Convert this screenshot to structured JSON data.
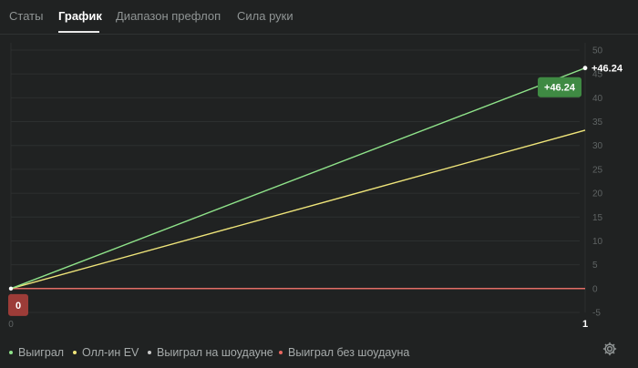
{
  "tabs": [
    {
      "label": "Статы",
      "active": false
    },
    {
      "label": "График",
      "active": true
    },
    {
      "label": "Диапазон префлоп",
      "active": false
    },
    {
      "label": "Сила руки",
      "active": false
    }
  ],
  "chart_data": {
    "type": "line",
    "x": [
      0,
      1
    ],
    "x_ticks": [
      "0",
      "1"
    ],
    "ylim": [
      -5,
      50
    ],
    "y_ticks": [
      "50",
      "45",
      "40",
      "35",
      "30",
      "25",
      "20",
      "15",
      "10",
      "5",
      "0",
      "-5"
    ],
    "grid": true,
    "series": [
      {
        "name": "Выиграл",
        "values": [
          0,
          46.24
        ],
        "color": "#8fe38a"
      },
      {
        "name": "Олл-ин EV",
        "values": [
          0,
          33.2
        ],
        "color": "#efe57a"
      },
      {
        "name": "Выиграл на шоудауне",
        "values": [
          0,
          0
        ],
        "color": "#c9c9c9"
      },
      {
        "name": "Выиграл без шоудауна",
        "values": [
          0,
          0
        ],
        "color": "#e9675f"
      }
    ],
    "end_label": "+46.24",
    "end_badge": "+46.24",
    "start_badge": "0"
  },
  "legend_position": "bottom-left",
  "settings_icon": "gear-icon",
  "colors": {
    "background": "#202222",
    "badge_win": "#3f8a43",
    "badge_zero": "#9c3c38"
  }
}
